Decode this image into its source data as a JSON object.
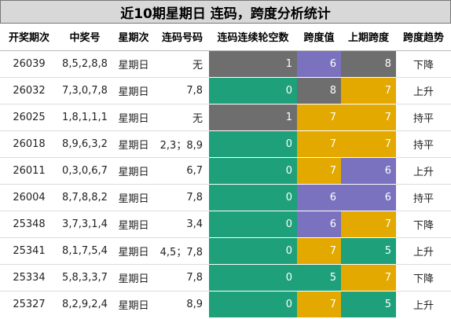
{
  "title": "近10期星期日 连码，跨度分析统计",
  "columns": [
    "开奖期次",
    "中奖号",
    "星期次",
    "连码号码",
    "连码连续轮空数",
    "跨度值",
    "上期跨度",
    "跨度趋势"
  ],
  "colors": {
    "gray": "#6e6e6e",
    "green": "#1ea07a",
    "purple": "#7a72be",
    "yellow": "#e3a900"
  },
  "rows": [
    {
      "period": "26039",
      "numbers": "8,5,2,8,8",
      "weekday": "星期日",
      "consec": "无",
      "gap": "1",
      "span": "6",
      "prev": "8",
      "trend": "下降",
      "c_gap": "gray",
      "c_span": "purple",
      "c_prev": "gray"
    },
    {
      "period": "26032",
      "numbers": "7,3,0,7,8",
      "weekday": "星期日",
      "consec": "7,8",
      "gap": "0",
      "span": "8",
      "prev": "7",
      "trend": "上升",
      "c_gap": "green",
      "c_span": "gray",
      "c_prev": "yellow"
    },
    {
      "period": "26025",
      "numbers": "1,8,1,1,1",
      "weekday": "星期日",
      "consec": "无",
      "gap": "1",
      "span": "7",
      "prev": "7",
      "trend": "持平",
      "c_gap": "gray",
      "c_span": "yellow",
      "c_prev": "yellow"
    },
    {
      "period": "26018",
      "numbers": "8,9,6,3,2",
      "weekday": "星期日",
      "consec": "2,3；8,9",
      "gap": "0",
      "span": "7",
      "prev": "7",
      "trend": "持平",
      "c_gap": "green",
      "c_span": "yellow",
      "c_prev": "yellow"
    },
    {
      "period": "26011",
      "numbers": "0,3,0,6,7",
      "weekday": "星期日",
      "consec": "6,7",
      "gap": "0",
      "span": "7",
      "prev": "6",
      "trend": "上升",
      "c_gap": "green",
      "c_span": "yellow",
      "c_prev": "purple"
    },
    {
      "period": "26004",
      "numbers": "8,7,8,8,2",
      "weekday": "星期日",
      "consec": "7,8",
      "gap": "0",
      "span": "6",
      "prev": "6",
      "trend": "持平",
      "c_gap": "green",
      "c_span": "purple",
      "c_prev": "purple"
    },
    {
      "period": "25348",
      "numbers": "3,7,3,1,4",
      "weekday": "星期日",
      "consec": "3,4",
      "gap": "0",
      "span": "6",
      "prev": "7",
      "trend": "下降",
      "c_gap": "green",
      "c_span": "purple",
      "c_prev": "yellow"
    },
    {
      "period": "25341",
      "numbers": "8,1,7,5,4",
      "weekday": "星期日",
      "consec": "4,5；7,8",
      "gap": "0",
      "span": "7",
      "prev": "5",
      "trend": "上升",
      "c_gap": "green",
      "c_span": "yellow",
      "c_prev": "green"
    },
    {
      "period": "25334",
      "numbers": "5,8,3,3,7",
      "weekday": "星期日",
      "consec": "7,8",
      "gap": "0",
      "span": "5",
      "prev": "7",
      "trend": "下降",
      "c_gap": "green",
      "c_span": "green",
      "c_prev": "yellow"
    },
    {
      "period": "25327",
      "numbers": "8,2,9,2,4",
      "weekday": "星期日",
      "consec": "8,9",
      "gap": "0",
      "span": "7",
      "prev": "5",
      "trend": "上升",
      "c_gap": "green",
      "c_span": "yellow",
      "c_prev": "green"
    }
  ]
}
